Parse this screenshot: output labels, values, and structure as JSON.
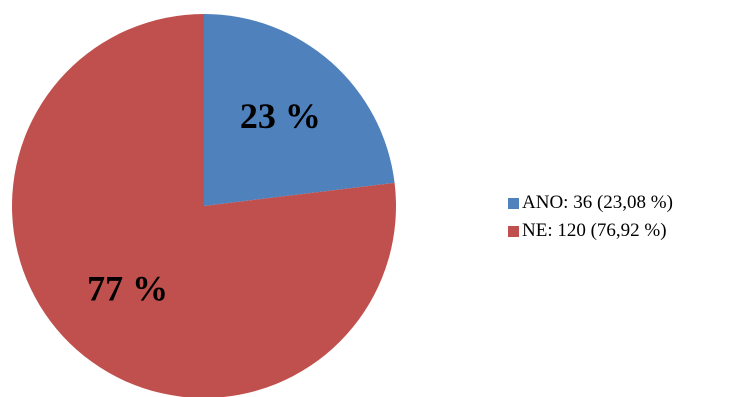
{
  "chart_data": {
    "type": "pie",
    "categories": [
      "ANO",
      "NE"
    ],
    "values": [
      36,
      120
    ],
    "percentages": [
      23.08,
      76.92
    ],
    "slice_labels": [
      "23 %",
      "77 %"
    ],
    "legend": [
      {
        "label": "ANO: 36 (23,08 %)",
        "color": "#4F81BD"
      },
      {
        "label": "NE: 120 (76,92 %)",
        "color": "#C0504D"
      }
    ],
    "colors": [
      "#4F81BD",
      "#C0504D"
    ],
    "legend_position": "right",
    "title": ""
  }
}
